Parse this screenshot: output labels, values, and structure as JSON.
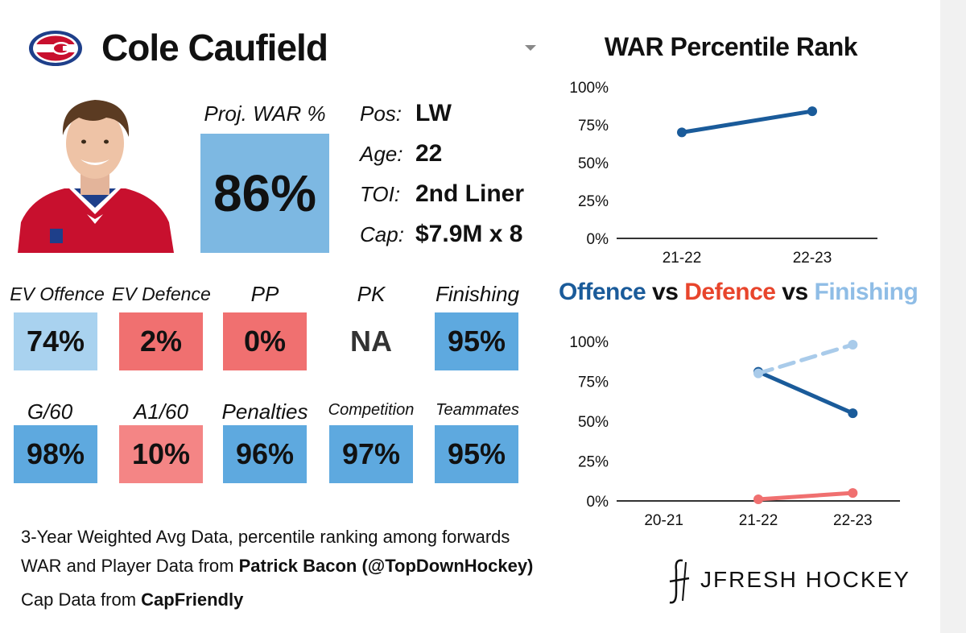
{
  "player": {
    "name": "Cole Caufield",
    "team_logo": "habs-logo",
    "proj_war_label": "Proj. WAR %",
    "proj_war_value": "86%"
  },
  "info": [
    {
      "label": "Pos:",
      "value": "LW"
    },
    {
      "label": "Age:",
      "value": "22"
    },
    {
      "label": "TOI:",
      "value": "2nd Liner"
    },
    {
      "label": "Cap:",
      "value": "$7.9M x 8"
    }
  ],
  "stats_row1": [
    {
      "label": "EV Offence",
      "value": "74%",
      "color": "#a9d2ef"
    },
    {
      "label": "EV Defence",
      "value": "2%",
      "color": "#f07070"
    },
    {
      "label": "PP",
      "value": "0%",
      "color": "#f07070"
    },
    {
      "label": "PK",
      "value": "NA",
      "color": "#ffffff"
    },
    {
      "label": "Finishing",
      "value": "95%",
      "color": "#5ea9df"
    }
  ],
  "stats_row2": [
    {
      "label": "G/60",
      "value": "98%",
      "color": "#5ea9df"
    },
    {
      "label": "A1/60",
      "value": "10%",
      "color": "#f48585"
    },
    {
      "label": "Penalties",
      "value": "96%",
      "color": "#5ea9df"
    },
    {
      "label": "Competition",
      "value": "97%",
      "color": "#5ea9df"
    },
    {
      "label": "Teammates",
      "value": "95%",
      "color": "#5ea9df"
    }
  ],
  "footer": {
    "line1": "3-Year Weighted Avg Data, percentile ranking among forwards",
    "line2_prefix": "WAR and Player Data from ",
    "line2_bold": "Patrick Bacon (@TopDownHockey)",
    "line3_prefix": "Cap Data from ",
    "line3_bold": "CapFriendly"
  },
  "brand": {
    "name": "JFRESH HOCKEY",
    "icon": "jf-logo-icon"
  },
  "colors": {
    "offence": "#1a5b9a",
    "defence": "#e8452c",
    "finishing": "#8fbde6",
    "defence_line": "#f07070"
  },
  "chart_data": [
    {
      "type": "line",
      "title": "WAR Percentile Rank",
      "categories": [
        "21-22",
        "22-23"
      ],
      "series": [
        {
          "name": "WAR",
          "values": [
            70,
            84
          ]
        }
      ],
      "ylim": [
        0,
        100
      ],
      "yticks": [
        "0%",
        "25%",
        "50%",
        "75%",
        "100%"
      ]
    },
    {
      "type": "line",
      "title_parts": [
        {
          "text": "Offence",
          "color": "#1a5b9a"
        },
        {
          "text": " vs ",
          "color": "#111111"
        },
        {
          "text": "Defence",
          "color": "#e8452c"
        },
        {
          "text": " vs ",
          "color": "#111111"
        },
        {
          "text": "Finishing",
          "color": "#8fbde6"
        }
      ],
      "categories": [
        "20-21",
        "21-22",
        "22-23"
      ],
      "series": [
        {
          "name": "Offence",
          "values": [
            null,
            81,
            55
          ],
          "color": "#1a5b9a",
          "dashed": false
        },
        {
          "name": "Defence",
          "values": [
            null,
            1,
            5
          ],
          "color": "#f07070",
          "dashed": false
        },
        {
          "name": "Finishing",
          "values": [
            null,
            80,
            98
          ],
          "color": "#a9cbea",
          "dashed": true
        }
      ],
      "ylim": [
        0,
        100
      ],
      "yticks": [
        "0%",
        "25%",
        "50%",
        "75%",
        "100%"
      ]
    }
  ]
}
